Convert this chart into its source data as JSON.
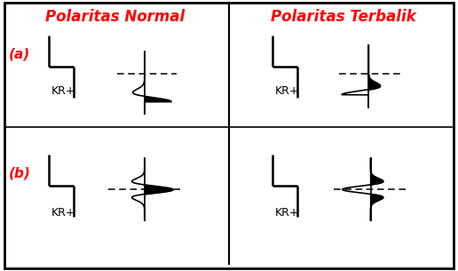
{
  "title_left": "Polaritas Normal",
  "title_right": "Polaritas Terbalik",
  "label_a": "(a)",
  "label_b": "(b)",
  "kr_label": "KR+",
  "title_color": "#ff0000",
  "label_color": "#ff0000",
  "bg_color": "#ffffff",
  "border_color": "#000000",
  "text_color": "#000000"
}
